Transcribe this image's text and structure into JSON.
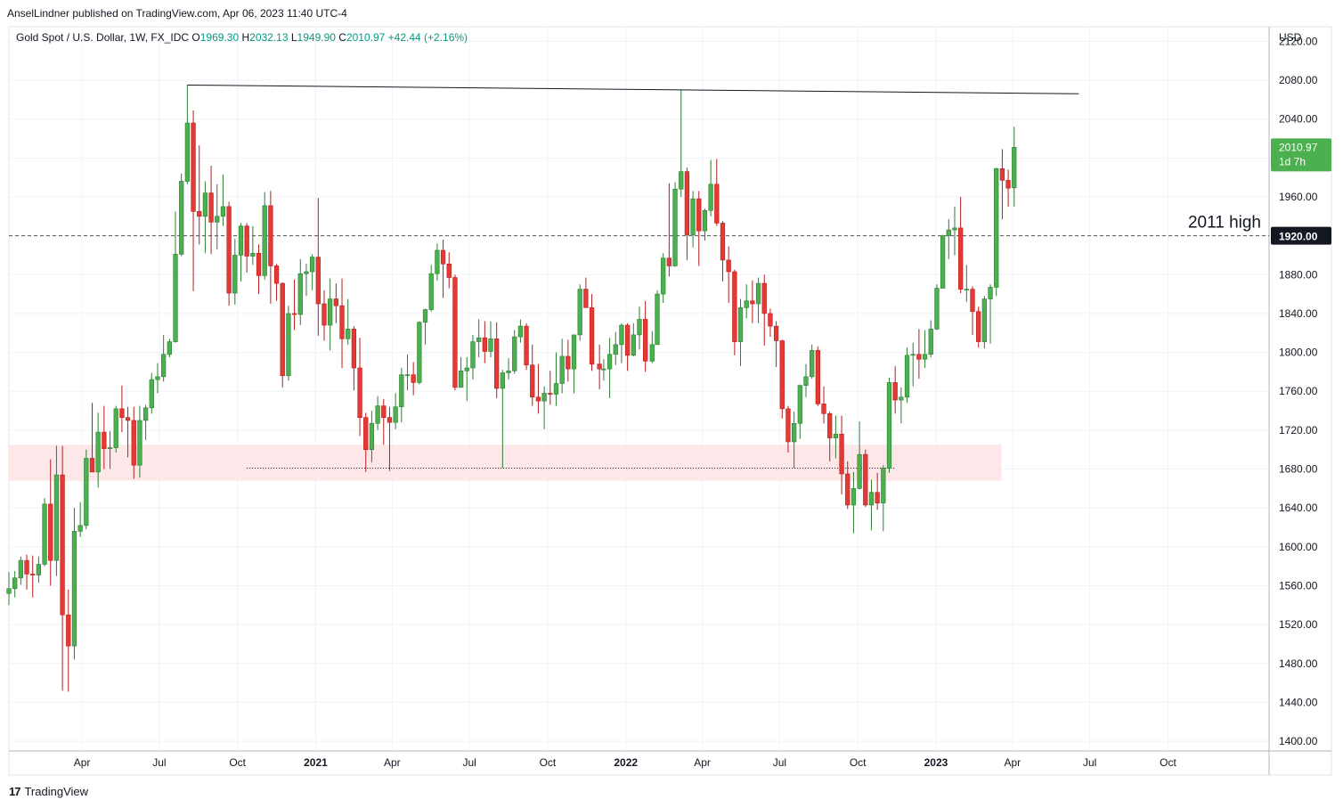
{
  "header": {
    "publisher": "AnselLindner published on TradingView.com, Apr 06, 2023 11:40 UTC-4"
  },
  "footer": {
    "brand": "TradingView",
    "logo_glyph": "17"
  },
  "colors": {
    "up": "#26a69a",
    "up_fill": "#4caf50",
    "down": "#ef5350",
    "down_fill": "#e53935",
    "zone": "#fde4e6",
    "last_price_bg": "#4caf50",
    "marker_bg": "#131722"
  },
  "chart_data": {
    "type": "candlestick",
    "title": "Gold Spot / U.S. Dollar, 1W, FX_IDC",
    "ohlc_readout": {
      "o_label": "O",
      "open": "1969.30",
      "h_label": "H",
      "high": "2032.13",
      "l_label": "L",
      "low": "1949.90",
      "c_label": "C",
      "close": "2010.97",
      "change": "+42.44 (+2.16%)"
    },
    "currency": "USD",
    "ylim": [
      1390,
      2135
    ],
    "y_ticks": [
      "2120.00",
      "2080.00",
      "2040.00",
      "2000.00",
      "1960.00",
      "1920.00",
      "1880.00",
      "1840.00",
      "1800.00",
      "1760.00",
      "1720.00",
      "1680.00",
      "1640.00",
      "1600.00",
      "1560.00",
      "1520.00",
      "1480.00",
      "1440.00",
      "1400.00"
    ],
    "x_range": [
      "2020-01-06",
      "2024-01-28"
    ],
    "x_ticks": [
      {
        "date": "2020-04-01",
        "label": "Apr",
        "bold": false
      },
      {
        "date": "2020-07-01",
        "label": "Jul",
        "bold": false
      },
      {
        "date": "2020-10-01",
        "label": "Oct",
        "bold": false
      },
      {
        "date": "2021-01-01",
        "label": "2021",
        "bold": true
      },
      {
        "date": "2021-04-01",
        "label": "Apr",
        "bold": false
      },
      {
        "date": "2021-07-01",
        "label": "Jul",
        "bold": false
      },
      {
        "date": "2021-10-01",
        "label": "Oct",
        "bold": false
      },
      {
        "date": "2022-01-01",
        "label": "2022",
        "bold": true
      },
      {
        "date": "2022-04-01",
        "label": "Apr",
        "bold": false
      },
      {
        "date": "2022-07-01",
        "label": "Jul",
        "bold": false
      },
      {
        "date": "2022-10-01",
        "label": "Oct",
        "bold": false
      },
      {
        "date": "2023-01-01",
        "label": "2023",
        "bold": true
      },
      {
        "date": "2023-04-01",
        "label": "Apr",
        "bold": false
      },
      {
        "date": "2023-07-01",
        "label": "Jul",
        "bold": false
      },
      {
        "date": "2023-10-01",
        "label": "Oct",
        "bold": false
      }
    ],
    "grid": true,
    "last_price": {
      "value": 2010.97,
      "label": "2010.97",
      "countdown": "1d 7h"
    },
    "annotations": {
      "resistance_line": {
        "start": [
          "2020-08-03",
          2075
        ],
        "end": [
          "2023-06-18",
          2066
        ]
      },
      "horizontal_level": {
        "value": 1920,
        "label": "1920.00",
        "text": "2011 high"
      },
      "support_zone": {
        "x0": "2020-01-06",
        "x1": "2023-03-19",
        "y0": 1668,
        "y1": 1705
      },
      "support_dotted": {
        "x0": "2020-10-12",
        "x1": "2022-11-13",
        "value": 1681
      }
    },
    "candles": [
      [
        "2020-01-06",
        1552,
        1574,
        1540,
        1557
      ],
      [
        "2020-01-13",
        1557,
        1575,
        1548,
        1568
      ],
      [
        "2020-01-20",
        1568,
        1590,
        1561,
        1586
      ],
      [
        "2020-01-27",
        1586,
        1592,
        1556,
        1572
      ],
      [
        "2020-02-03",
        1572,
        1591,
        1548,
        1571
      ],
      [
        "2020-02-10",
        1571,
        1590,
        1563,
        1582
      ],
      [
        "2020-02-17",
        1582,
        1650,
        1580,
        1644
      ],
      [
        "2020-02-24",
        1644,
        1690,
        1560,
        1586
      ],
      [
        "2020-03-02",
        1586,
        1704,
        1570,
        1674
      ],
      [
        "2020-03-09",
        1674,
        1704,
        1452,
        1530
      ],
      [
        "2020-03-16",
        1530,
        1556,
        1451,
        1498
      ],
      [
        "2020-03-23",
        1498,
        1640,
        1484,
        1616
      ],
      [
        "2020-03-30",
        1616,
        1646,
        1610,
        1622
      ],
      [
        "2020-04-06",
        1622,
        1700,
        1618,
        1691
      ],
      [
        "2020-04-13",
        1691,
        1748,
        1683,
        1677
      ],
      [
        "2020-04-20",
        1677,
        1738,
        1661,
        1718
      ],
      [
        "2020-04-27",
        1718,
        1745,
        1680,
        1701
      ],
      [
        "2020-05-04",
        1701,
        1719,
        1680,
        1702
      ],
      [
        "2020-05-11",
        1702,
        1745,
        1697,
        1742
      ],
      [
        "2020-05-18",
        1742,
        1766,
        1718,
        1733
      ],
      [
        "2020-05-25",
        1733,
        1744,
        1692,
        1730
      ],
      [
        "2020-06-01",
        1730,
        1744,
        1670,
        1684
      ],
      [
        "2020-06-08",
        1684,
        1745,
        1671,
        1730
      ],
      [
        "2020-06-15",
        1730,
        1746,
        1710,
        1743
      ],
      [
        "2020-06-22",
        1743,
        1779,
        1737,
        1772
      ],
      [
        "2020-06-29",
        1772,
        1789,
        1758,
        1775
      ],
      [
        "2020-07-06",
        1775,
        1818,
        1770,
        1798
      ],
      [
        "2020-07-13",
        1798,
        1814,
        1795,
        1811
      ],
      [
        "2020-07-20",
        1811,
        1945,
        1810,
        1901
      ],
      [
        "2020-07-27",
        1901,
        1984,
        1899,
        1976
      ],
      [
        "2020-08-03",
        1976,
        2075,
        1973,
        2036
      ],
      [
        "2020-08-10",
        2036,
        2049,
        1863,
        1945
      ],
      [
        "2020-08-17",
        1945,
        2013,
        1911,
        1940
      ],
      [
        "2020-08-24",
        1940,
        1976,
        1902,
        1964
      ],
      [
        "2020-08-31",
        1964,
        1992,
        1901,
        1934
      ],
      [
        "2020-09-07",
        1934,
        1973,
        1906,
        1940
      ],
      [
        "2020-09-14",
        1940,
        1983,
        1930,
        1950
      ],
      [
        "2020-09-21",
        1950,
        1955,
        1848,
        1861
      ],
      [
        "2020-09-28",
        1861,
        1917,
        1849,
        1900
      ],
      [
        "2020-10-05",
        1900,
        1933,
        1873,
        1930
      ],
      [
        "2020-10-12",
        1930,
        1933,
        1882,
        1899
      ],
      [
        "2020-10-19",
        1899,
        1930,
        1890,
        1902
      ],
      [
        "2020-10-26",
        1902,
        1911,
        1860,
        1879
      ],
      [
        "2020-11-02",
        1879,
        1965,
        1875,
        1951
      ],
      [
        "2020-11-09",
        1951,
        1966,
        1850,
        1889
      ],
      [
        "2020-11-16",
        1889,
        1891,
        1853,
        1871
      ],
      [
        "2020-11-23",
        1871,
        1872,
        1764,
        1776
      ],
      [
        "2020-11-30",
        1776,
        1848,
        1771,
        1840
      ],
      [
        "2020-12-07",
        1840,
        1875,
        1823,
        1839
      ],
      [
        "2020-12-14",
        1839,
        1896,
        1828,
        1881
      ],
      [
        "2020-12-21",
        1881,
        1891,
        1858,
        1883
      ],
      [
        "2020-12-28",
        1883,
        1901,
        1864,
        1898
      ],
      [
        "2021-01-04",
        1898,
        1959,
        1817,
        1850
      ],
      [
        "2021-01-11",
        1850,
        1864,
        1812,
        1828
      ],
      [
        "2021-01-18",
        1828,
        1876,
        1802,
        1855
      ],
      [
        "2021-01-25",
        1855,
        1871,
        1830,
        1848
      ],
      [
        "2021-02-01",
        1848,
        1876,
        1784,
        1814
      ],
      [
        "2021-02-08",
        1814,
        1855,
        1808,
        1824
      ],
      [
        "2021-02-15",
        1824,
        1827,
        1761,
        1784
      ],
      [
        "2021-02-22",
        1784,
        1815,
        1714,
        1733
      ],
      [
        "2021-03-01",
        1733,
        1738,
        1677,
        1700
      ],
      [
        "2021-03-08",
        1700,
        1740,
        1687,
        1727
      ],
      [
        "2021-03-15",
        1727,
        1755,
        1720,
        1745
      ],
      [
        "2021-03-22",
        1745,
        1752,
        1705,
        1733
      ],
      [
        "2021-03-29",
        1733,
        1744,
        1678,
        1728
      ],
      [
        "2021-04-05",
        1728,
        1758,
        1721,
        1744
      ],
      [
        "2021-04-12",
        1744,
        1784,
        1728,
        1777
      ],
      [
        "2021-04-19",
        1777,
        1798,
        1761,
        1777
      ],
      [
        "2021-04-26",
        1777,
        1790,
        1756,
        1769
      ],
      [
        "2021-05-03",
        1769,
        1832,
        1767,
        1831
      ],
      [
        "2021-05-10",
        1831,
        1845,
        1808,
        1844
      ],
      [
        "2021-05-17",
        1844,
        1890,
        1842,
        1881
      ],
      [
        "2021-05-24",
        1881,
        1912,
        1874,
        1905
      ],
      [
        "2021-05-31",
        1905,
        1916,
        1856,
        1891
      ],
      [
        "2021-06-07",
        1891,
        1903,
        1866,
        1877
      ],
      [
        "2021-06-14",
        1877,
        1880,
        1761,
        1764
      ],
      [
        "2021-06-21",
        1764,
        1795,
        1770,
        1781
      ],
      [
        "2021-06-28",
        1781,
        1795,
        1750,
        1784
      ],
      [
        "2021-07-05",
        1784,
        1818,
        1772,
        1811
      ],
      [
        "2021-07-12",
        1811,
        1834,
        1795,
        1815
      ],
      [
        "2021-07-19",
        1815,
        1832,
        1789,
        1801
      ],
      [
        "2021-07-26",
        1801,
        1832,
        1795,
        1814
      ],
      [
        "2021-08-02",
        1814,
        1831,
        1753,
        1763
      ],
      [
        "2021-08-09",
        1763,
        1782,
        1681,
        1779
      ],
      [
        "2021-08-16",
        1779,
        1794,
        1772,
        1781
      ],
      [
        "2021-08-23",
        1781,
        1823,
        1778,
        1816
      ],
      [
        "2021-08-30",
        1816,
        1834,
        1810,
        1827
      ],
      [
        "2021-09-06",
        1827,
        1830,
        1782,
        1787
      ],
      [
        "2021-09-13",
        1787,
        1808,
        1745,
        1754
      ],
      [
        "2021-09-20",
        1754,
        1788,
        1737,
        1750
      ],
      [
        "2021-09-27",
        1750,
        1765,
        1721,
        1758
      ],
      [
        "2021-10-04",
        1758,
        1781,
        1746,
        1757
      ],
      [
        "2021-10-11",
        1757,
        1800,
        1745,
        1768
      ],
      [
        "2021-10-18",
        1768,
        1814,
        1758,
        1796
      ],
      [
        "2021-10-25",
        1796,
        1813,
        1770,
        1783
      ],
      [
        "2021-11-01",
        1783,
        1818,
        1758,
        1818
      ],
      [
        "2021-11-08",
        1818,
        1870,
        1812,
        1865
      ],
      [
        "2021-11-15",
        1865,
        1877,
        1847,
        1846
      ],
      [
        "2021-11-22",
        1846,
        1860,
        1781,
        1788
      ],
      [
        "2021-12-01",
        1788,
        1808,
        1762,
        1783
      ],
      [
        "2021-12-06",
        1783,
        1793,
        1771,
        1783
      ],
      [
        "2021-12-13",
        1783,
        1815,
        1753,
        1798
      ],
      [
        "2021-12-20",
        1798,
        1821,
        1787,
        1808
      ],
      [
        "2021-12-27",
        1808,
        1830,
        1789,
        1828
      ],
      [
        "2022-01-03",
        1828,
        1830,
        1781,
        1797
      ],
      [
        "2022-01-10",
        1797,
        1830,
        1796,
        1818
      ],
      [
        "2022-01-17",
        1818,
        1847,
        1803,
        1834
      ],
      [
        "2022-01-24",
        1834,
        1853,
        1780,
        1791
      ],
      [
        "2022-02-01",
        1791,
        1822,
        1789,
        1808
      ],
      [
        "2022-02-07",
        1808,
        1864,
        1812,
        1860
      ],
      [
        "2022-02-14",
        1860,
        1902,
        1851,
        1897
      ],
      [
        "2022-02-21",
        1897,
        1974,
        1878,
        1889
      ],
      [
        "2022-02-28",
        1889,
        1975,
        1888,
        1968
      ],
      [
        "2022-03-07",
        1968,
        2070,
        1960,
        1986
      ],
      [
        "2022-03-14",
        1986,
        1990,
        1895,
        1921
      ],
      [
        "2022-03-21",
        1921,
        1966,
        1908,
        1958
      ],
      [
        "2022-03-28",
        1958,
        1966,
        1889,
        1925
      ],
      [
        "2022-04-04",
        1925,
        1948,
        1915,
        1946
      ],
      [
        "2022-04-11",
        1946,
        1998,
        1940,
        1973
      ],
      [
        "2022-04-18",
        1973,
        1999,
        1930,
        1933
      ],
      [
        "2022-04-25",
        1933,
        1935,
        1873,
        1895
      ],
      [
        "2022-05-02",
        1895,
        1909,
        1851,
        1883
      ],
      [
        "2022-05-09",
        1883,
        1885,
        1797,
        1811
      ],
      [
        "2022-05-16",
        1811,
        1855,
        1786,
        1846
      ],
      [
        "2022-05-23",
        1846,
        1870,
        1835,
        1853
      ],
      [
        "2022-05-30",
        1853,
        1874,
        1830,
        1850
      ],
      [
        "2022-06-06",
        1850,
        1877,
        1830,
        1871
      ],
      [
        "2022-06-13",
        1871,
        1880,
        1807,
        1840
      ],
      [
        "2022-06-20",
        1840,
        1845,
        1816,
        1827
      ],
      [
        "2022-06-27",
        1827,
        1832,
        1785,
        1812
      ],
      [
        "2022-07-04",
        1812,
        1813,
        1732,
        1742
      ],
      [
        "2022-07-11",
        1742,
        1745,
        1697,
        1708
      ],
      [
        "2022-07-18",
        1708,
        1739,
        1681,
        1727
      ],
      [
        "2022-07-25",
        1727,
        1767,
        1711,
        1766
      ],
      [
        "2022-08-01",
        1766,
        1788,
        1754,
        1775
      ],
      [
        "2022-08-08",
        1775,
        1808,
        1773,
        1802
      ],
      [
        "2022-08-15",
        1802,
        1806,
        1745,
        1747
      ],
      [
        "2022-08-22",
        1747,
        1765,
        1727,
        1737
      ],
      [
        "2022-08-29",
        1737,
        1739,
        1688,
        1712
      ],
      [
        "2022-09-05",
        1712,
        1735,
        1691,
        1716
      ],
      [
        "2022-09-12",
        1716,
        1735,
        1654,
        1675
      ],
      [
        "2022-09-19",
        1675,
        1688,
        1639,
        1643
      ],
      [
        "2022-09-26",
        1643,
        1677,
        1614,
        1660
      ],
      [
        "2022-10-03",
        1660,
        1729,
        1659,
        1695
      ],
      [
        "2022-10-10",
        1695,
        1700,
        1641,
        1643
      ],
      [
        "2022-10-17",
        1643,
        1669,
        1617,
        1656
      ],
      [
        "2022-10-24",
        1656,
        1676,
        1638,
        1645
      ],
      [
        "2022-10-31",
        1645,
        1684,
        1616,
        1681
      ],
      [
        "2022-11-07",
        1681,
        1774,
        1676,
        1769
      ],
      [
        "2022-11-14",
        1769,
        1786,
        1737,
        1751
      ],
      [
        "2022-11-21",
        1751,
        1764,
        1727,
        1754
      ],
      [
        "2022-11-28",
        1754,
        1805,
        1748,
        1797
      ],
      [
        "2022-12-05",
        1797,
        1810,
        1765,
        1798
      ],
      [
        "2022-12-12",
        1798,
        1824,
        1773,
        1793
      ],
      [
        "2022-12-19",
        1793,
        1823,
        1784,
        1798
      ],
      [
        "2022-12-26",
        1798,
        1833,
        1795,
        1824
      ],
      [
        "2023-01-02",
        1824,
        1870,
        1823,
        1866
      ],
      [
        "2023-01-09",
        1866,
        1921,
        1866,
        1920
      ],
      [
        "2023-01-16",
        1920,
        1937,
        1896,
        1926
      ],
      [
        "2023-01-23",
        1926,
        1950,
        1900,
        1928
      ],
      [
        "2023-01-30",
        1928,
        1960,
        1861,
        1865
      ],
      [
        "2023-02-06",
        1865,
        1890,
        1852,
        1865
      ],
      [
        "2023-02-13",
        1865,
        1868,
        1818,
        1842
      ],
      [
        "2023-02-20",
        1842,
        1847,
        1805,
        1811
      ],
      [
        "2023-02-27",
        1811,
        1858,
        1804,
        1855
      ],
      [
        "2023-03-06",
        1855,
        1870,
        1809,
        1867
      ],
      [
        "2023-03-13",
        1867,
        1990,
        1858,
        1989
      ],
      [
        "2023-03-20",
        1989,
        2009,
        1937,
        1977
      ],
      [
        "2023-03-27",
        1977,
        1988,
        1950,
        1969
      ],
      [
        "2023-04-03",
        1969.3,
        2032.13,
        1949.9,
        2010.97
      ]
    ]
  }
}
